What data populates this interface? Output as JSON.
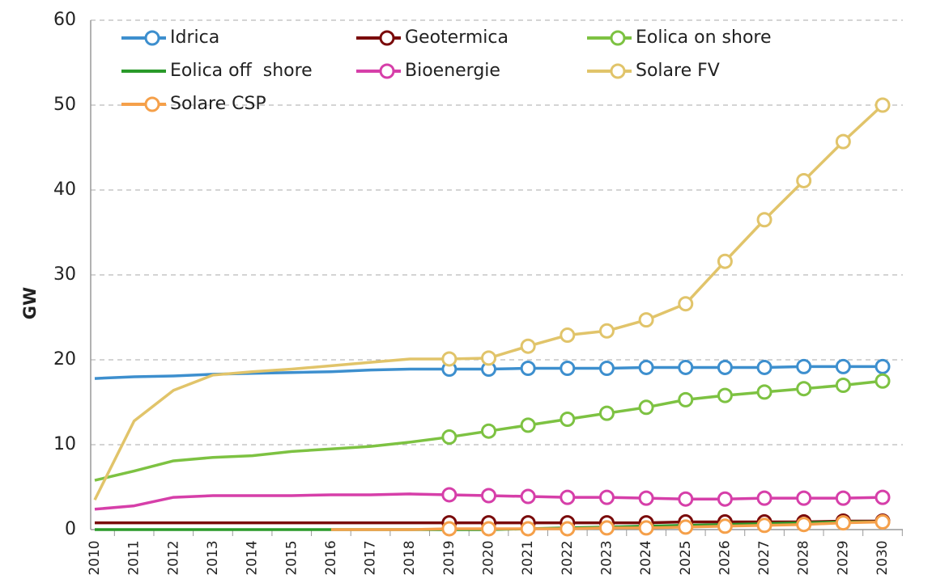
{
  "chart_data": {
    "type": "line",
    "y_label": "GW",
    "categories": [
      "2010",
      "2011",
      "2012",
      "2013",
      "2014",
      "2015",
      "2016",
      "2017",
      "2018",
      "2019",
      "2020",
      "2021",
      "2022",
      "2023",
      "2024",
      "2025",
      "2026",
      "2027",
      "2028",
      "2029",
      "2030"
    ],
    "markers_from": "2019",
    "ylim": [
      0,
      60
    ],
    "yticks": [
      0,
      10,
      20,
      30,
      40,
      50,
      60
    ],
    "grid": true,
    "legend": "top",
    "series": [
      {
        "name": "Idrica",
        "color": "#3d8fce",
        "marker": true,
        "values": [
          17.8,
          18.0,
          18.1,
          18.3,
          18.4,
          18.5,
          18.6,
          18.8,
          18.9,
          18.9,
          18.9,
          19.0,
          19.0,
          19.0,
          19.1,
          19.1,
          19.1,
          19.1,
          19.2,
          19.2,
          19.2
        ]
      },
      {
        "name": "Geotermica",
        "color": "#7a0a0a",
        "marker": true,
        "values": [
          0.8,
          0.8,
          0.8,
          0.8,
          0.8,
          0.8,
          0.8,
          0.8,
          0.8,
          0.8,
          0.8,
          0.8,
          0.8,
          0.8,
          0.8,
          0.9,
          0.9,
          0.9,
          0.9,
          1.0,
          1.0
        ]
      },
      {
        "name": "Eolica on shore",
        "color": "#7dc242",
        "marker": true,
        "values": [
          5.8,
          6.9,
          8.1,
          8.5,
          8.7,
          9.2,
          9.5,
          9.8,
          10.3,
          10.9,
          11.6,
          12.3,
          13.0,
          13.7,
          14.4,
          15.3,
          15.8,
          16.2,
          16.6,
          17.0,
          17.5
        ]
      },
      {
        "name": "Eolica off  shore",
        "color": "#2a9a2a",
        "marker": false,
        "values": [
          0,
          0,
          0,
          0,
          0,
          0,
          0,
          0,
          0,
          0,
          0,
          0.1,
          0.2,
          0.3,
          0.4,
          0.5,
          0.6,
          0.7,
          0.8,
          0.9,
          0.9
        ]
      },
      {
        "name": "Bioenergie",
        "color": "#d63fa9",
        "marker": true,
        "values": [
          2.4,
          2.8,
          3.8,
          4.0,
          4.0,
          4.0,
          4.1,
          4.1,
          4.2,
          4.1,
          4.0,
          3.9,
          3.8,
          3.8,
          3.7,
          3.6,
          3.6,
          3.7,
          3.7,
          3.7,
          3.8
        ]
      },
      {
        "name": "Solare FV",
        "color": "#e1c46a",
        "marker": true,
        "values": [
          3.5,
          12.8,
          16.4,
          18.2,
          18.6,
          18.9,
          19.3,
          19.7,
          20.1,
          20.1,
          20.2,
          21.6,
          22.9,
          23.4,
          24.7,
          26.6,
          31.6,
          36.5,
          41.1,
          45.7,
          50.0
        ]
      },
      {
        "name": "Solare CSP",
        "color": "#f5a04a",
        "marker": true,
        "values": [
          null,
          null,
          null,
          null,
          null,
          null,
          0,
          0,
          0,
          0.1,
          0.1,
          0.1,
          0.1,
          0.2,
          0.2,
          0.3,
          0.4,
          0.5,
          0.6,
          0.8,
          0.9
        ]
      }
    ]
  }
}
